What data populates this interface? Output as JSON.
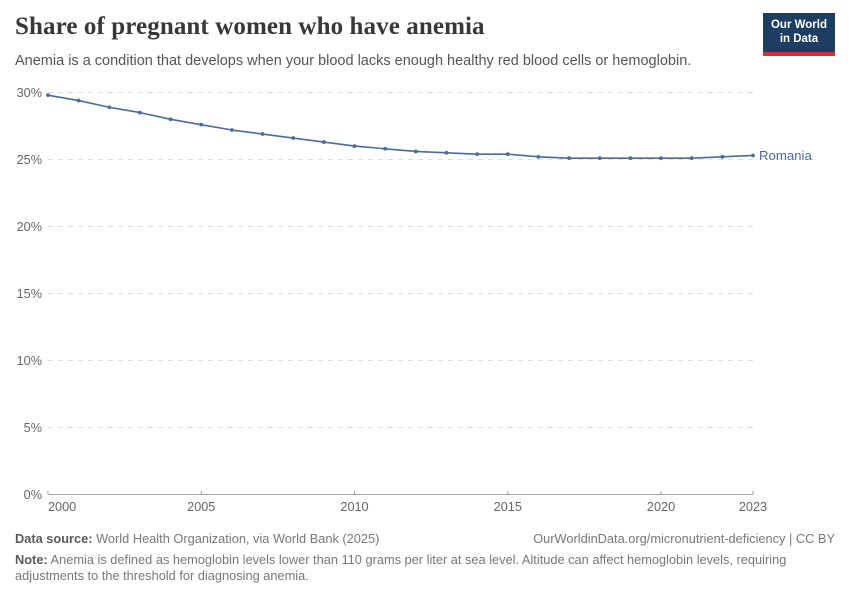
{
  "header": {
    "title": "Share of pregnant women who have anemia",
    "subtitle": "Anemia is a condition that develops when your blood lacks enough healthy red blood cells or hemoglobin.",
    "logo_line1": "Our World",
    "logo_line2": "in Data"
  },
  "chart_data": {
    "type": "line",
    "title": "Share of pregnant women who have anemia",
    "xlabel": "",
    "ylabel": "",
    "grid": "horizontal-dashed",
    "legend_position": "end-of-line",
    "ylim": [
      0,
      30
    ],
    "yticks": [
      0,
      5,
      10,
      15,
      20,
      25,
      30
    ],
    "ytick_suffix": "%",
    "xlim": [
      2000,
      2023
    ],
    "xticks": [
      2000,
      2005,
      2010,
      2015,
      2020,
      2023
    ],
    "x": [
      2000,
      2001,
      2002,
      2003,
      2004,
      2005,
      2006,
      2007,
      2008,
      2009,
      2010,
      2011,
      2012,
      2013,
      2014,
      2015,
      2016,
      2017,
      2018,
      2019,
      2020,
      2021,
      2022,
      2023
    ],
    "series": [
      {
        "name": "Romania",
        "color": "#4C6A9C",
        "values": [
          29.8,
          29.4,
          28.9,
          28.5,
          28.0,
          27.6,
          27.2,
          26.9,
          26.6,
          26.3,
          26.0,
          25.8,
          25.6,
          25.5,
          25.4,
          25.4,
          25.2,
          25.1,
          25.1,
          25.1,
          25.1,
          25.1,
          25.2,
          25.3
        ]
      }
    ]
  },
  "footer": {
    "datasource_label": "Data source:",
    "datasource_text": " World Health Organization, via World Bank (2025)",
    "link_text": "OurWorldinData.org/micronutrient-deficiency | CC BY",
    "note_label": "Note:",
    "note_text": " Anemia is defined as hemoglobin levels lower than 110 grams per liter at sea level. Altitude can affect hemoglobin levels, requiring adjustments to the threshold for diagnosing anemia."
  },
  "colors": {
    "line": "#4C6A9C",
    "gridline": "#dddddd",
    "axis": "#a1a1a1",
    "tick_label": "#666666",
    "logo_bg": "#1d3d63",
    "logo_red": "#d0342c",
    "title": "#383838"
  }
}
